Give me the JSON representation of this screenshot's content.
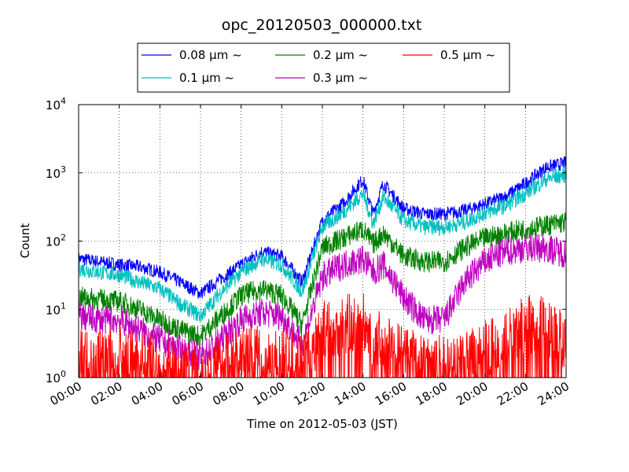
{
  "chart_data": {
    "type": "line",
    "title": "opc_20120503_000000.txt",
    "xlabel": "Time on 2012-05-03 (JST)",
    "ylabel": "Count",
    "y_scale": "log",
    "xlim": [
      "00:00",
      "24:00"
    ],
    "ylim": [
      1,
      10000
    ],
    "grid": true,
    "legend_position": "top-center",
    "x_ticks": [
      "00:00",
      "02:00",
      "04:00",
      "06:00",
      "08:00",
      "10:00",
      "12:00",
      "14:00",
      "16:00",
      "18:00",
      "20:00",
      "22:00",
      "24:00"
    ],
    "y_ticks": [
      {
        "value": 1,
        "base": "10",
        "exp": "0"
      },
      {
        "value": 10,
        "base": "10",
        "exp": "1"
      },
      {
        "value": 100,
        "base": "10",
        "exp": "2"
      },
      {
        "value": 1000,
        "base": "10",
        "exp": "3"
      },
      {
        "value": 10000,
        "base": "10",
        "exp": "4"
      }
    ],
    "x": [
      "00:00",
      "01:00",
      "02:00",
      "03:00",
      "04:00",
      "05:00",
      "06:00",
      "07:00",
      "08:00",
      "09:00",
      "10:00",
      "11:00",
      "12:00",
      "13:00",
      "14:00",
      "14:30",
      "15:00",
      "16:00",
      "17:00",
      "18:00",
      "19:00",
      "20:00",
      "21:00",
      "22:00",
      "23:00",
      "24:00"
    ],
    "series": [
      {
        "name": "0.08 μm ~",
        "color": "#0000ff",
        "values": [
          55,
          50,
          45,
          42,
          35,
          25,
          17,
          28,
          45,
          70,
          60,
          25,
          200,
          350,
          800,
          250,
          700,
          300,
          250,
          250,
          280,
          350,
          450,
          700,
          1200,
          1400
        ]
      },
      {
        "name": "0.1 μm ~",
        "color": "#00bfbf",
        "values": [
          40,
          35,
          32,
          25,
          20,
          12,
          8,
          18,
          35,
          55,
          45,
          18,
          160,
          260,
          500,
          180,
          450,
          200,
          160,
          160,
          190,
          260,
          330,
          500,
          800,
          950
        ]
      },
      {
        "name": "0.2 μm ~",
        "color": "#008000",
        "values": [
          15,
          14,
          13,
          10,
          7,
          5,
          4,
          8,
          16,
          20,
          16,
          6,
          80,
          110,
          150,
          90,
          130,
          60,
          50,
          50,
          80,
          110,
          130,
          150,
          170,
          190
        ]
      },
      {
        "name": "0.3 μm ~",
        "color": "#bf00bf",
        "values": [
          8,
          7,
          7,
          5,
          3.5,
          2.5,
          2,
          3.5,
          7,
          9,
          8,
          3,
          30,
          45,
          55,
          35,
          45,
          15,
          7,
          7,
          25,
          50,
          70,
          80,
          80,
          65
        ]
      },
      {
        "name": "0.5 μm ~",
        "color": "#ff0000",
        "values": [
          2,
          2,
          2,
          1.8,
          1.5,
          1.3,
          1.2,
          1.5,
          2,
          2.2,
          2,
          1.5,
          5,
          6,
          6.5,
          4,
          3,
          2,
          1.6,
          1.5,
          1.6,
          2.5,
          4,
          6,
          5.5,
          3.5
        ]
      }
    ]
  }
}
